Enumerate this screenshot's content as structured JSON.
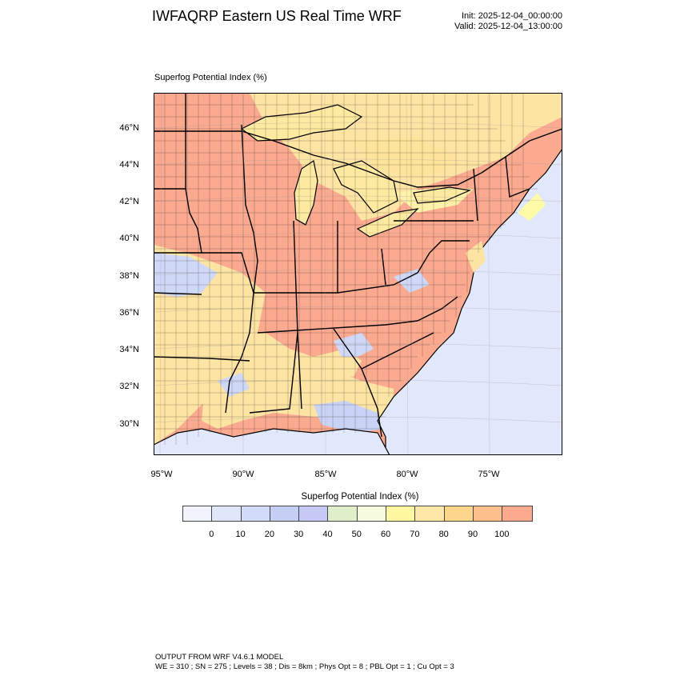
{
  "header": {
    "title": "IWFAQRP Eastern US Real Time WRF",
    "init": "Init: 2025-12-04_00:00:00",
    "valid": "Valid: 2025-12-04_13:00:00"
  },
  "map": {
    "subtitle": "Superfog Potential Index   (%)",
    "lat_labels": [
      "46°N",
      "44°N",
      "42°N",
      "40°N",
      "38°N",
      "36°N",
      "34°N",
      "32°N",
      "30°N"
    ],
    "lon_labels": [
      "95°W",
      "90°W",
      "85°W",
      "80°W",
      "75°W"
    ],
    "colors": {
      "ocean": "#e2e8fc",
      "high": "#fba98f",
      "mid": "#fde4a3",
      "low_blue": "#cfd8f6",
      "yellow": "#fffaa6",
      "border": "#000000"
    }
  },
  "colorbar": {
    "title": "Superfog Potential Index  (%)",
    "labels": [
      "0",
      "10",
      "20",
      "30",
      "40",
      "50",
      "60",
      "70",
      "80",
      "90",
      "100"
    ],
    "colors": [
      "#f0f3fb",
      "#e1e7fb",
      "#d2dcfa",
      "#c5cff6",
      "#c6c8f5",
      "#deefc9",
      "#f7fce0",
      "#fff8a0",
      "#fde8a8",
      "#fcd68b",
      "#fbc08c",
      "#fba98f"
    ]
  },
  "footer": {
    "line1": "OUTPUT FROM WRF V4.6.1 MODEL",
    "line2": "WE = 310 ; SN = 275 ; Levels = 38 ; Dis = 8km ; Phys Opt = 8 ; PBL Opt = 1 ; Cu Opt = 3"
  }
}
